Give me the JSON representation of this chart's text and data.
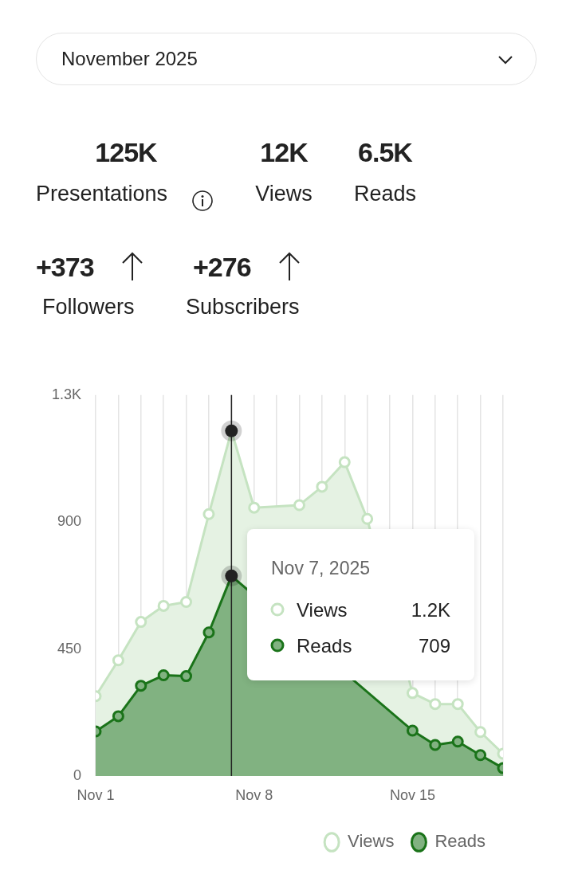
{
  "chart_data": [
    {
      "type": "other",
      "title": "November 2025",
      "annotations": [
        "125K",
        "Presentations",
        "12K",
        "Views",
        "6.5K",
        "Reads",
        "+373",
        "Followers",
        "+276",
        "Subscribers"
      ]
    },
    {
      "type": "area",
      "x": [
        "2025-11-01",
        "2025-11-02",
        "2025-11-03",
        "2025-11-04",
        "2025-11-05",
        "2025-11-06",
        "2025-11-07",
        "2025-11-08",
        "2025-11-09",
        "2025-11-10",
        "2025-11-11",
        "2025-11-12",
        "2025-11-13",
        "2025-11-14",
        "2025-11-15",
        "2025-11-16",
        "2025-11-17",
        "2025-11-18",
        "2025-11-19"
      ],
      "series": [
        {
          "name": "Views",
          "color": "#c5e3c1",
          "values": [
            283,
            410,
            546,
            603,
            617,
            928,
            1223,
            951,
            null,
            960,
            1025,
            1112,
            911,
            null,
            294,
            255,
            255,
            156,
            79
          ]
        },
        {
          "name": "Reads",
          "color": "#1a7319",
          "values": [
            158,
            212,
            320,
            357,
            354,
            509,
            709,
            null,
            null,
            null,
            null,
            null,
            null,
            null,
            161,
            110,
            122,
            74,
            28
          ]
        }
      ],
      "xlim": [
        "2025-11-01",
        "2025-11-19"
      ],
      "xticks": [
        {
          "value": "2025-11-01",
          "label": "Nov 1"
        },
        {
          "value": "2025-11-02",
          "label": null
        },
        {
          "value": "2025-11-03",
          "label": null
        },
        {
          "value": "2025-11-04",
          "label": null
        },
        {
          "value": "2025-11-05",
          "label": null
        },
        {
          "value": "2025-11-06",
          "label": null
        },
        {
          "value": "2025-11-07",
          "label": null
        },
        {
          "value": "2025-11-08",
          "label": "Nov 8"
        },
        {
          "value": "2025-11-09",
          "label": null
        },
        {
          "value": "2025-11-10",
          "label": null
        },
        {
          "value": "2025-11-11",
          "label": null
        },
        {
          "value": "2025-11-12",
          "label": null
        },
        {
          "value": "2025-11-13",
          "label": null
        },
        {
          "value": "2025-11-14",
          "label": null
        },
        {
          "value": "2025-11-15",
          "label": "Nov 15"
        },
        {
          "value": "2025-11-16",
          "label": null
        },
        {
          "value": "2025-11-17",
          "label": null
        },
        {
          "value": "2025-11-18",
          "label": null
        },
        {
          "value": "2025-11-19",
          "label": null
        }
      ],
      "ylim": [
        0,
        1350
      ],
      "yticks": [
        0,
        450,
        900,
        {
          "value": 1350,
          "label": "1.3K"
        }
      ],
      "grid": "x",
      "legend": "bottom right",
      "marker": "circle",
      "ref_lines": [
        {
          "axis": "x",
          "value": "2025-11-07",
          "color": "#222222"
        }
      ],
      "annotations": [
        "Nov 7, 2025",
        "Views",
        "1.2K",
        "Reads",
        "709"
      ]
    }
  ]
}
